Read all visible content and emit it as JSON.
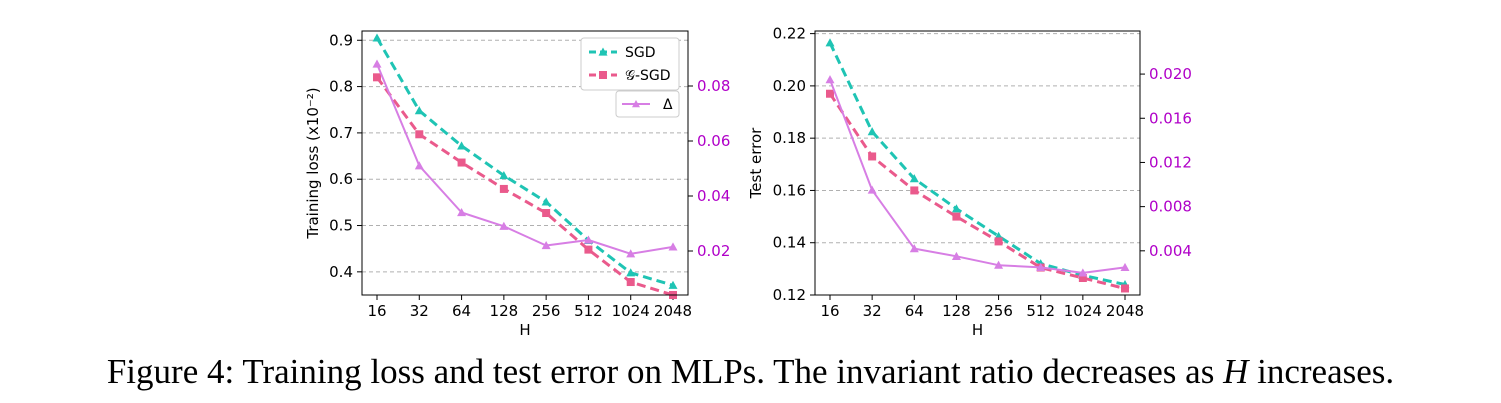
{
  "figure": {
    "caption_prefix": "Figure 4: Training loss and test error on MLPs. The invariant ratio decreases as ",
    "caption_var": "H",
    "caption_suffix": " increases."
  },
  "colors": {
    "sgd": "#1fc4b4",
    "gsgd": "#ea5a8c",
    "delta": "#d77ee4",
    "right_axis": "#b000c8",
    "grid": "#b0b0b0"
  },
  "chart_data": [
    {
      "type": "line",
      "xlabel": "H",
      "ylabel": "Training loss (x10⁻²)",
      "categories": [
        "16",
        "32",
        "64",
        "128",
        "256",
        "512",
        "1024",
        "2048"
      ],
      "ylim": [
        0.35,
        0.92
      ],
      "yticks": [
        "0.4",
        "0.5",
        "0.6",
        "0.7",
        "0.8",
        "0.9"
      ],
      "y2lim": [
        0.004,
        0.1
      ],
      "y2ticks": [
        "0.02",
        "0.04",
        "0.06",
        "0.08"
      ],
      "grid": true,
      "legend": {
        "top": [
          "SGD",
          "𝒢-SGD"
        ],
        "right": "Δ"
      },
      "series": [
        {
          "name": "SGD",
          "axis": "left",
          "values": [
            0.905,
            0.748,
            0.672,
            0.608,
            0.551,
            0.468,
            0.398,
            0.371
          ]
        },
        {
          "name": "𝒢-SGD",
          "axis": "left",
          "values": [
            0.82,
            0.697,
            0.636,
            0.579,
            0.527,
            0.448,
            0.378,
            0.35
          ]
        },
        {
          "name": "Δ",
          "axis": "right",
          "values": [
            0.088,
            0.051,
            0.034,
            0.029,
            0.022,
            0.024,
            0.019,
            0.0215
          ]
        }
      ]
    },
    {
      "type": "line",
      "xlabel": "H",
      "ylabel": "Test error",
      "categories": [
        "16",
        "32",
        "64",
        "128",
        "256",
        "512",
        "1024",
        "2048"
      ],
      "ylim": [
        0.12,
        0.221
      ],
      "yticks": [
        "0.12",
        "0.14",
        "0.16",
        "0.18",
        "0.20",
        "0.22"
      ],
      "y2lim": [
        0.0,
        0.0239
      ],
      "y2ticks": [
        "0.004",
        "0.008",
        "0.012",
        "0.016",
        "0.020"
      ],
      "grid": true,
      "series": [
        {
          "name": "SGD",
          "axis": "left",
          "values": [
            0.2165,
            0.1825,
            0.1645,
            0.153,
            0.1425,
            0.132,
            0.1275,
            0.124
          ]
        },
        {
          "name": "𝒢-SGD",
          "axis": "left",
          "values": [
            0.197,
            0.173,
            0.16,
            0.15,
            0.1405,
            0.1305,
            0.1265,
            0.1225
          ]
        },
        {
          "name": "Δ",
          "axis": "right",
          "values": [
            0.0195,
            0.0095,
            0.0042,
            0.0035,
            0.0027,
            0.0025,
            0.002,
            0.0025
          ]
        }
      ]
    }
  ]
}
